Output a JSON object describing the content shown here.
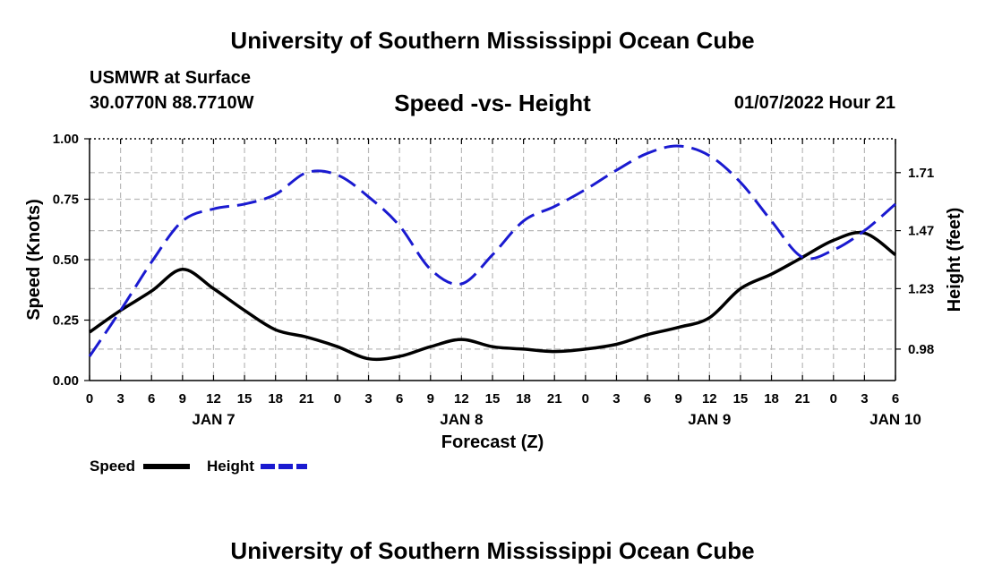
{
  "header": {
    "title": "University of Southern Mississippi Ocean Cube",
    "station": "USMWR at Surface",
    "coords": "30.0770N  88.7710W",
    "plot_title": "Speed -vs- Height",
    "datetime": "01/07/2022 Hour 21"
  },
  "footer": {
    "title": "University of Southern Mississippi Ocean Cube"
  },
  "colors": {
    "speed": "#000000",
    "height": "#1a1ad0",
    "grid": "#b8b8b8"
  },
  "chart_data": {
    "type": "line",
    "title": "Speed -vs- Height",
    "xlabel": "Forecast (Z)",
    "ylabel": "Speed (Knots)",
    "y2label": "Height (feet)",
    "xlim": [
      0,
      78
    ],
    "ylim": [
      0,
      1.0
    ],
    "y2lim": [
      0.85,
      1.85
    ],
    "x_ticks": [
      0,
      3,
      6,
      9,
      12,
      15,
      18,
      21,
      24,
      27,
      30,
      33,
      36,
      39,
      42,
      45,
      48,
      51,
      54,
      57,
      60,
      63,
      66,
      69,
      72,
      75,
      78
    ],
    "x_tick_labels": [
      "0",
      "3",
      "6",
      "9",
      "12",
      "15",
      "18",
      "21",
      "0",
      "3",
      "6",
      "9",
      "12",
      "15",
      "18",
      "21",
      "0",
      "3",
      "6",
      "9",
      "12",
      "15",
      "18",
      "21",
      "0",
      "3",
      "6"
    ],
    "date_labels": [
      {
        "label": "JAN 7",
        "x": 12
      },
      {
        "label": "JAN 8",
        "x": 36
      },
      {
        "label": "JAN 9",
        "x": 60
      },
      {
        "label": "JAN 10",
        "x": 78
      }
    ],
    "y_ticks": [
      0.0,
      0.25,
      0.5,
      0.75,
      1.0
    ],
    "y_tick_labels": [
      "0.00",
      "0.25",
      "0.50",
      "0.75",
      "1.00"
    ],
    "y2_ticks": [
      0.98,
      1.23,
      1.47,
      1.71
    ],
    "y2_tick_labels": [
      "0.98",
      "1.23",
      "1.47",
      "1.71"
    ],
    "series": [
      {
        "name": "Speed",
        "axis": "left",
        "style": "solid",
        "x": [
          0,
          3,
          6,
          9,
          12,
          15,
          18,
          21,
          24,
          27,
          30,
          33,
          36,
          39,
          42,
          45,
          48,
          51,
          54,
          57,
          60,
          63,
          66,
          69,
          72,
          75,
          78
        ],
        "values": [
          0.2,
          0.29,
          0.37,
          0.46,
          0.38,
          0.29,
          0.21,
          0.18,
          0.14,
          0.09,
          0.1,
          0.14,
          0.17,
          0.14,
          0.13,
          0.12,
          0.13,
          0.15,
          0.19,
          0.22,
          0.26,
          0.38,
          0.44,
          0.51,
          0.58,
          0.61,
          0.52
        ]
      },
      {
        "name": "Height",
        "axis": "right",
        "style": "dashed",
        "x": [
          0,
          3,
          6,
          9,
          12,
          15,
          18,
          21,
          24,
          27,
          30,
          33,
          36,
          39,
          42,
          45,
          48,
          51,
          54,
          57,
          60,
          63,
          66,
          69,
          72,
          75,
          78
        ],
        "values": [
          0.95,
          1.14,
          1.34,
          1.51,
          1.56,
          1.58,
          1.62,
          1.71,
          1.7,
          1.61,
          1.49,
          1.31,
          1.25,
          1.37,
          1.51,
          1.57,
          1.64,
          1.72,
          1.79,
          1.82,
          1.78,
          1.67,
          1.51,
          1.36,
          1.39,
          1.47,
          1.58
        ]
      }
    ],
    "legend": [
      {
        "label": "Speed",
        "style": "solid"
      },
      {
        "label": "Height",
        "style": "dashed"
      }
    ],
    "grid": true,
    "legend_position": "bottom-left"
  }
}
